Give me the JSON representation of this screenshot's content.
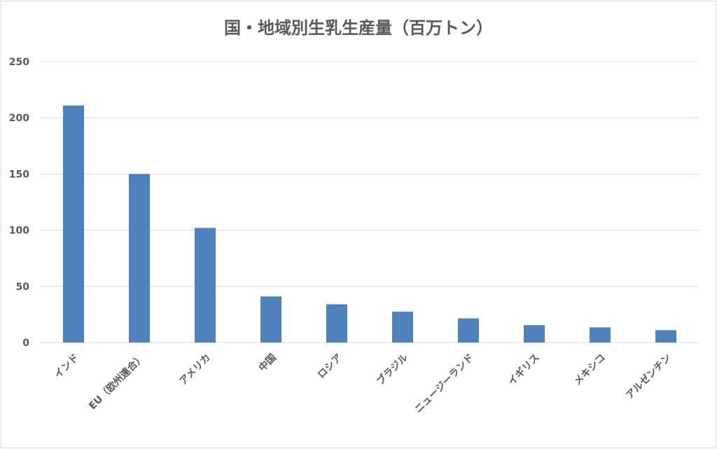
{
  "chart_data": {
    "type": "bar",
    "title": "国・地域別生乳生産量（百万トン）",
    "categories": [
      "インド",
      "EU（欧州連合）",
      "アメリカ",
      "中国",
      "ロシア",
      "ブラジル",
      "ニュージーランド",
      "イギリス",
      "メキシコ",
      "アルゼンチン"
    ],
    "values": [
      211,
      150,
      102,
      41,
      34,
      27.5,
      21.5,
      15.5,
      13.5,
      11
    ],
    "ylim": [
      0,
      250
    ],
    "yticks": [
      0,
      50,
      100,
      150,
      200,
      250
    ],
    "grid": true,
    "bar_color": "#4f81bd",
    "grid_color": "#d9d9d9",
    "xlabel": "",
    "ylabel": ""
  }
}
